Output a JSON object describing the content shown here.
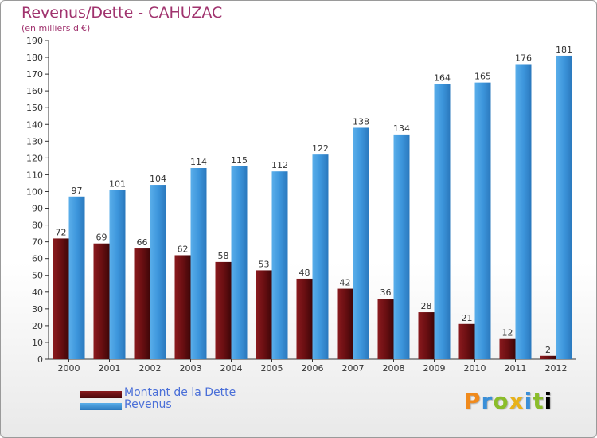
{
  "chart_data": {
    "type": "bar",
    "title": "Revenus/Dette - CAHUZAC",
    "subtitle": "(en milliers d'€)",
    "categories": [
      "2000",
      "2001",
      "2002",
      "2003",
      "2004",
      "2005",
      "2006",
      "2007",
      "2008",
      "2009",
      "2010",
      "2011",
      "2012"
    ],
    "series": [
      {
        "name": "Montant de la Dette",
        "color": "#6b0f12",
        "values": [
          72,
          69,
          66,
          62,
          58,
          53,
          48,
          42,
          36,
          28,
          21,
          12,
          2
        ]
      },
      {
        "name": "Revenus",
        "color": "#3d96dc",
        "values": [
          97,
          101,
          104,
          114,
          115,
          112,
          122,
          138,
          134,
          164,
          165,
          176,
          181
        ]
      }
    ],
    "ylim": [
      0,
      190
    ],
    "ytick_step": 10,
    "grid": false,
    "legend_position": "bottom-left"
  },
  "logo": {
    "letters": [
      "P",
      "r",
      "o",
      "x",
      "i",
      "t",
      "i"
    ]
  }
}
